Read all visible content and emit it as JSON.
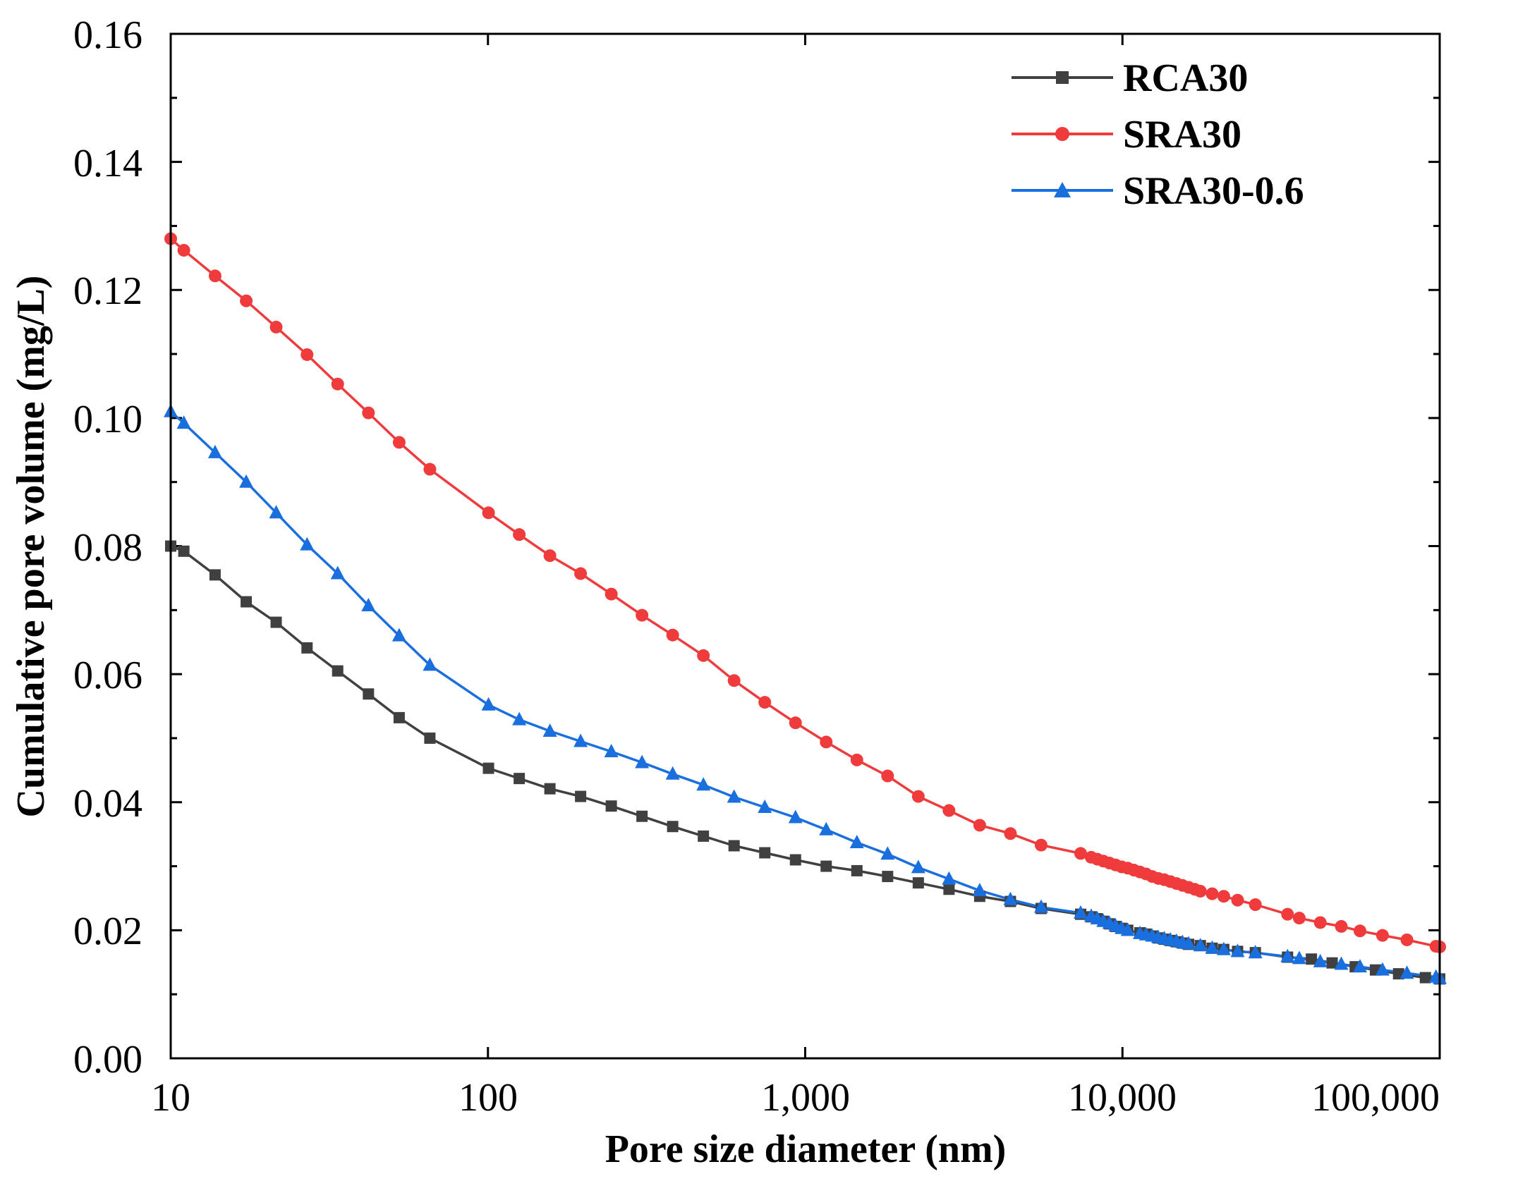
{
  "chart_data": {
    "type": "line",
    "title": "",
    "xlabel": "Pore size diameter (nm)",
    "ylabel": "Cumulative pore volume (mg/L)",
    "xscale": "log",
    "xlim": [
      10,
      100000
    ],
    "ylim": [
      0,
      0.16
    ],
    "grid": false,
    "legend_position": "top-right",
    "x_tick_labels": [
      "10",
      "100",
      "1,000",
      "10,000",
      "100,000"
    ],
    "y_tick_labels": [
      "0.00",
      "0.02",
      "0.04",
      "0.06",
      "0.08",
      "0.10",
      "0.12",
      "0.14",
      "0.16"
    ],
    "series": [
      {
        "name": "RCA30",
        "color": "#404040",
        "marker": "square",
        "points": [
          [
            10.0,
            0.08
          ],
          [
            11.0,
            0.0792
          ],
          [
            13.8,
            0.0755
          ],
          [
            17.3,
            0.0713
          ],
          [
            21.5,
            0.0681
          ],
          [
            26.9,
            0.0641
          ],
          [
            33.6,
            0.0605
          ],
          [
            42.0,
            0.0569
          ],
          [
            52.5,
            0.0532
          ],
          [
            65.6,
            0.05
          ],
          [
            100.4,
            0.0453
          ],
          [
            125.5,
            0.0437
          ],
          [
            156.8,
            0.0421
          ],
          [
            195.9,
            0.0409
          ],
          [
            244.8,
            0.0394
          ],
          [
            305.9,
            0.0378
          ],
          [
            382.2,
            0.0362
          ],
          [
            477.6,
            0.0347
          ],
          [
            596.8,
            0.0332
          ],
          [
            745.8,
            0.0321
          ],
          [
            932.0,
            0.031
          ],
          [
            1164.6,
            0.03
          ],
          [
            1455.3,
            0.0293
          ],
          [
            1818.6,
            0.0284
          ],
          [
            2272.6,
            0.0274
          ],
          [
            2839.8,
            0.0264
          ],
          [
            3548.7,
            0.0253
          ],
          [
            4434.6,
            0.0245
          ],
          [
            5541.7,
            0.0234
          ],
          [
            7383.0,
            0.0225
          ],
          [
            7970.3,
            0.0221
          ],
          [
            8330.6,
            0.0218
          ],
          [
            8707.2,
            0.0214
          ],
          [
            9100.7,
            0.021
          ],
          [
            9512.1,
            0.0206
          ],
          [
            9942.1,
            0.0203
          ],
          [
            10391.5,
            0.02
          ],
          [
            11352.0,
            0.0196
          ],
          [
            11865.1,
            0.0194
          ],
          [
            12401.5,
            0.0191
          ],
          [
            12962.1,
            0.0188
          ],
          [
            13548.0,
            0.0186
          ],
          [
            14160.5,
            0.0184
          ],
          [
            14800.6,
            0.0182
          ],
          [
            15469.6,
            0.018
          ],
          [
            16169.0,
            0.0178
          ],
          [
            17602.2,
            0.0176
          ],
          [
            19179.3,
            0.0172
          ],
          [
            20862.0,
            0.017
          ],
          [
            23063.5,
            0.0167
          ],
          [
            26238.8,
            0.0165
          ],
          [
            33143.0,
            0.0158
          ],
          [
            39416.7,
            0.0155
          ],
          [
            45808.1,
            0.0149
          ],
          [
            54167.8,
            0.0143
          ],
          [
            62731.9,
            0.0138
          ],
          [
            74204.8,
            0.0132
          ],
          [
            90135.1,
            0.0126
          ],
          [
            100000.0,
            0.0124
          ]
        ]
      },
      {
        "name": "SRA30",
        "color": "#ef3b3b",
        "marker": "circle",
        "points": [
          [
            10.0,
            0.128
          ],
          [
            11.0,
            0.1262
          ],
          [
            13.8,
            0.1222
          ],
          [
            17.3,
            0.1183
          ],
          [
            21.5,
            0.1142
          ],
          [
            26.9,
            0.1099
          ],
          [
            33.6,
            0.1053
          ],
          [
            42.0,
            0.1008
          ],
          [
            52.5,
            0.0962
          ],
          [
            65.6,
            0.092
          ],
          [
            100.4,
            0.0852
          ],
          [
            125.5,
            0.0818
          ],
          [
            156.8,
            0.0785
          ],
          [
            195.9,
            0.0757
          ],
          [
            244.8,
            0.0725
          ],
          [
            305.9,
            0.0692
          ],
          [
            382.2,
            0.0661
          ],
          [
            477.6,
            0.0629
          ],
          [
            596.8,
            0.059
          ],
          [
            745.8,
            0.0556
          ],
          [
            932.0,
            0.0524
          ],
          [
            1164.6,
            0.0494
          ],
          [
            1455.3,
            0.0466
          ],
          [
            1818.6,
            0.0441
          ],
          [
            2272.6,
            0.0409
          ],
          [
            2839.8,
            0.0387
          ],
          [
            3548.7,
            0.0364
          ],
          [
            4434.6,
            0.0351
          ],
          [
            5541.7,
            0.0333
          ],
          [
            7383.0,
            0.032
          ],
          [
            7970.3,
            0.0314
          ],
          [
            8330.6,
            0.0311
          ],
          [
            8707.2,
            0.0308
          ],
          [
            9100.7,
            0.0305
          ],
          [
            9512.1,
            0.0302
          ],
          [
            9942.1,
            0.0299
          ],
          [
            10391.5,
            0.0297
          ],
          [
            10861.4,
            0.0294
          ],
          [
            11352.0,
            0.0291
          ],
          [
            11865.1,
            0.0288
          ],
          [
            12401.5,
            0.0284
          ],
          [
            12962.1,
            0.0281
          ],
          [
            13548.0,
            0.0279
          ],
          [
            14160.5,
            0.0276
          ],
          [
            14800.6,
            0.0273
          ],
          [
            15469.6,
            0.027
          ],
          [
            16169.0,
            0.0267
          ],
          [
            16899.8,
            0.0264
          ],
          [
            17602.2,
            0.0261
          ],
          [
            19179.3,
            0.0257
          ],
          [
            20862.0,
            0.0253
          ],
          [
            23063.5,
            0.0247
          ],
          [
            26238.8,
            0.024
          ],
          [
            33143.0,
            0.0225
          ],
          [
            36090.0,
            0.0219
          ],
          [
            42033.2,
            0.0212
          ],
          [
            48955.0,
            0.0206
          ],
          [
            56070.9,
            0.0199
          ],
          [
            66022.5,
            0.0192
          ],
          [
            78839.8,
            0.0185
          ],
          [
            97328.6,
            0.0175
          ],
          [
            100000.0,
            0.0174
          ]
        ]
      },
      {
        "name": "SRA30-0.6",
        "color": "#1a6fdf",
        "marker": "triangle",
        "points": [
          [
            10.0,
            0.101
          ],
          [
            11.0,
            0.0992
          ],
          [
            13.8,
            0.0946
          ],
          [
            17.3,
            0.09
          ],
          [
            21.5,
            0.0852
          ],
          [
            26.9,
            0.0802
          ],
          [
            33.6,
            0.0757
          ],
          [
            42.0,
            0.0707
          ],
          [
            52.5,
            0.066
          ],
          [
            65.6,
            0.0614
          ],
          [
            100.4,
            0.0552
          ],
          [
            125.5,
            0.0529
          ],
          [
            156.8,
            0.0511
          ],
          [
            195.9,
            0.0495
          ],
          [
            244.8,
            0.0479
          ],
          [
            305.9,
            0.0462
          ],
          [
            382.2,
            0.0444
          ],
          [
            477.6,
            0.0427
          ],
          [
            596.8,
            0.0408
          ],
          [
            745.8,
            0.0392
          ],
          [
            932.0,
            0.0376
          ],
          [
            1164.6,
            0.0357
          ],
          [
            1455.3,
            0.0337
          ],
          [
            1818.6,
            0.0319
          ],
          [
            2272.6,
            0.0298
          ],
          [
            2839.8,
            0.028
          ],
          [
            3548.7,
            0.0262
          ],
          [
            4434.6,
            0.0248
          ],
          [
            5541.7,
            0.0236
          ],
          [
            7383.0,
            0.0227
          ],
          [
            7970.3,
            0.0222
          ],
          [
            8330.6,
            0.0218
          ],
          [
            8707.2,
            0.0214
          ],
          [
            9100.7,
            0.0211
          ],
          [
            9512.1,
            0.0207
          ],
          [
            9942.1,
            0.0203
          ],
          [
            10391.5,
            0.02
          ],
          [
            11352.0,
            0.0195
          ],
          [
            11865.1,
            0.0193
          ],
          [
            12401.5,
            0.0191
          ],
          [
            12962.1,
            0.0189
          ],
          [
            13548.0,
            0.0187
          ],
          [
            14160.5,
            0.0185
          ],
          [
            14800.6,
            0.0183
          ],
          [
            15469.6,
            0.0181
          ],
          [
            16169.0,
            0.0179
          ],
          [
            17602.2,
            0.0176
          ],
          [
            19179.3,
            0.0172
          ],
          [
            20862.0,
            0.017
          ],
          [
            23063.5,
            0.0167
          ],
          [
            26238.8,
            0.0165
          ],
          [
            33143.0,
            0.0159
          ],
          [
            36090.0,
            0.0156
          ],
          [
            42033.2,
            0.0151
          ],
          [
            48955.0,
            0.0147
          ],
          [
            56070.9,
            0.0143
          ],
          [
            66022.5,
            0.0138
          ],
          [
            78839.8,
            0.0133
          ],
          [
            97328.6,
            0.0127
          ],
          [
            100000.0,
            0.0125
          ]
        ]
      }
    ]
  }
}
